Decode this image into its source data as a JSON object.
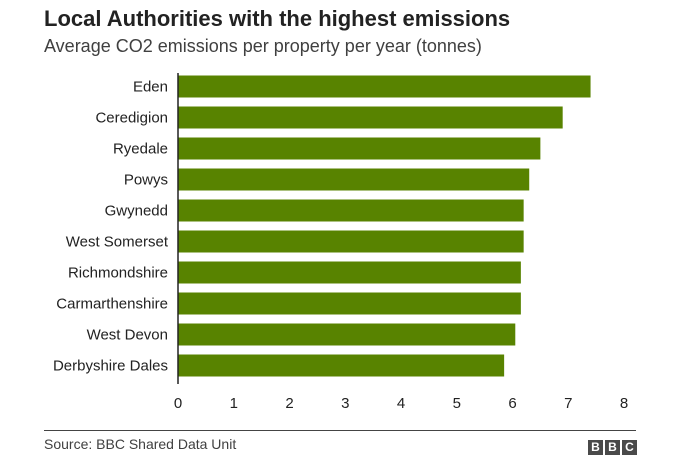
{
  "header": {
    "title": "Local Authorities with the highest emissions",
    "subtitle": "Average CO2 emissions per property per year (tonnes)"
  },
  "footer": {
    "source": "Source: BBC Shared Data Unit",
    "logo": [
      "B",
      "B",
      "C"
    ]
  },
  "colors": {
    "bar": "#588300",
    "axis": "#222222"
  },
  "chart_data": {
    "type": "bar",
    "orientation": "horizontal",
    "title": "Local Authorities with the highest emissions",
    "subtitle": "Average CO2 emissions per property per year (tonnes)",
    "categories": [
      "Eden",
      "Ceredigion",
      "Ryedale",
      "Powys",
      "Gwynedd",
      "West Somerset",
      "Richmondshire",
      "Carmarthenshire",
      "West Devon",
      "Derbyshire Dales"
    ],
    "values": [
      7.4,
      6.9,
      6.5,
      6.3,
      6.2,
      6.2,
      6.15,
      6.15,
      6.05,
      5.85
    ],
    "xlim": [
      0,
      8
    ],
    "xticks": [
      "0",
      "1",
      "2",
      "3",
      "4",
      "5",
      "6",
      "7",
      "8"
    ],
    "grid": false,
    "legend": "none"
  }
}
